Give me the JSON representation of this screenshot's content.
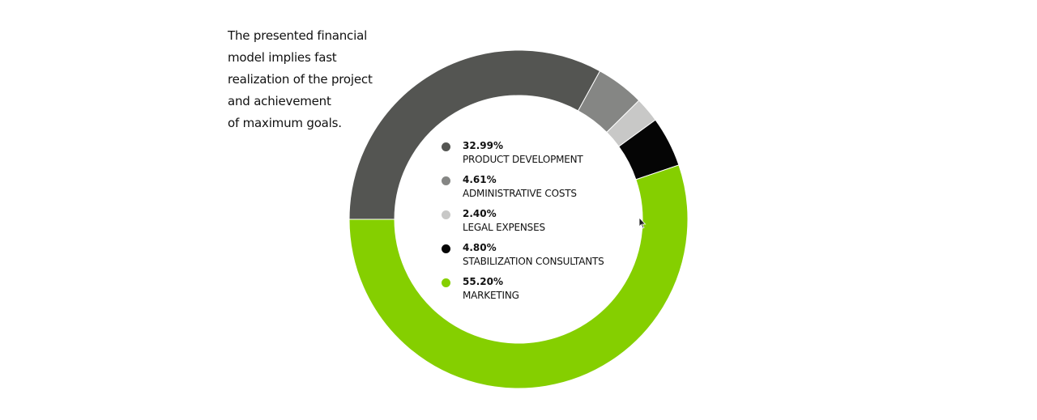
{
  "intro": {
    "lines": [
      "The presented financial",
      "model implies fast",
      "realization of the project",
      "and achievement",
      "of maximum goals."
    ]
  },
  "chart_data": {
    "type": "pie",
    "variant": "donut",
    "categories": [
      "PRODUCT DEVELOPMENT",
      "ADMINISTRATIVE COSTS",
      "LEGAL EXPENSES",
      "STABILIZATION CONSULTANTS",
      "MARKETING"
    ],
    "values": [
      32.99,
      4.61,
      2.4,
      4.8,
      55.2
    ],
    "value_labels": [
      "32.99%",
      "4.61%",
      "2.40%",
      "4.80%",
      "55.20%"
    ],
    "colors": [
      "#545552",
      "#858684",
      "#c8c8c7",
      "#050505",
      "#85cf00"
    ],
    "start": "left (9 o'clock), clockwise",
    "legend_placement": "center"
  }
}
